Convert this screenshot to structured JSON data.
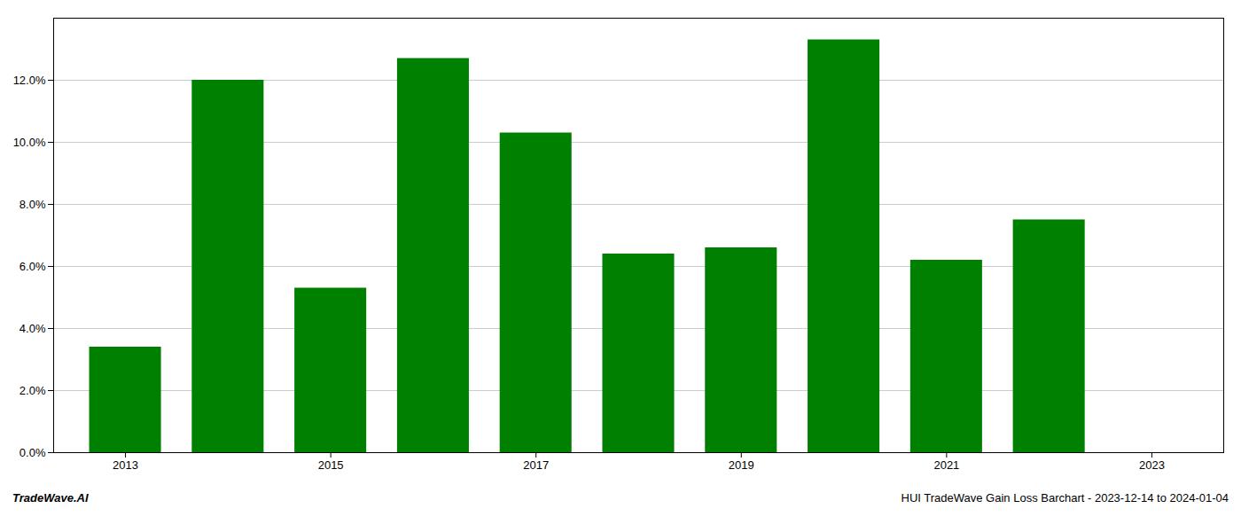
{
  "chart_data": {
    "type": "bar",
    "x": [
      2013,
      2014,
      2015,
      2016,
      2017,
      2018,
      2019,
      2020,
      2021,
      2022,
      2023
    ],
    "values": [
      3.4,
      12.0,
      5.3,
      12.7,
      10.3,
      6.4,
      6.6,
      13.3,
      6.2,
      7.5,
      0.0
    ],
    "color": "#008000",
    "xlim": [
      2012.3,
      2023.7
    ],
    "xticks": [
      2013,
      2015,
      2017,
      2019,
      2021,
      2023
    ],
    "ylim": [
      0.0,
      14.0
    ],
    "yticks": [
      {
        "value": 0.0,
        "label": "0.0%"
      },
      {
        "value": 2.0,
        "label": "2.0%"
      },
      {
        "value": 4.0,
        "label": "4.0%"
      },
      {
        "value": 6.0,
        "label": "6.0%"
      },
      {
        "value": 8.0,
        "label": "8.0%"
      },
      {
        "value": 10.0,
        "label": "10.0%"
      },
      {
        "value": 12.0,
        "label": "12.0%"
      }
    ],
    "grid": true,
    "annotations": [
      "TradeWave.AI",
      "HUI TradeWave Gain Loss Barchart - 2023-12-14 to 2024-01-04"
    ]
  }
}
